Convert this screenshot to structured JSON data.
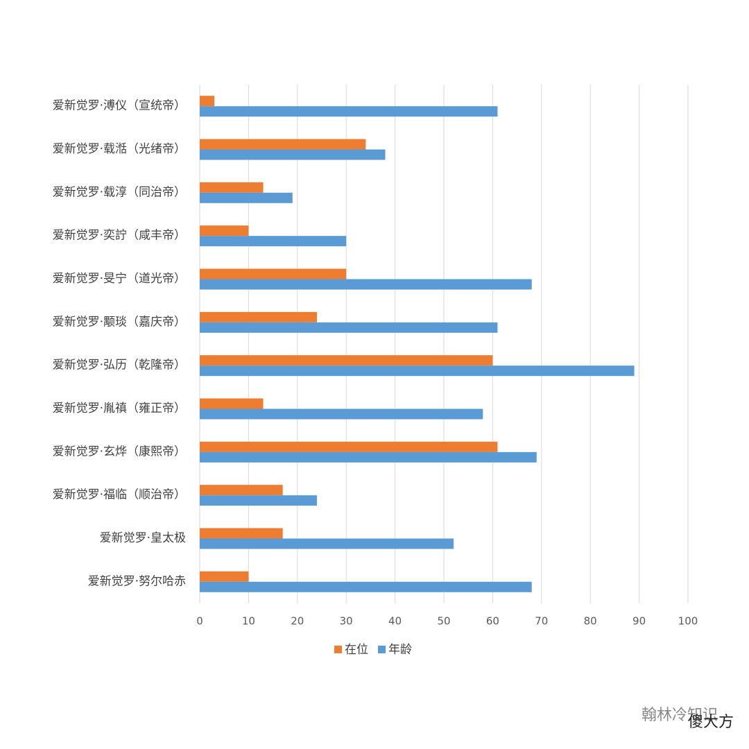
{
  "chart_data": {
    "type": "hbar",
    "categories": [
      "爱新觉罗·溥仪（宣统帝）",
      "爱新觉罗·载湉（光绪帝）",
      "爱新觉罗·载淳（同治帝）",
      "爱新觉罗·奕詝（咸丰帝）",
      "爱新觉罗·旻宁（道光帝）",
      "爱新觉罗·颙琰（嘉庆帝）",
      "爱新觉罗·弘历（乾隆帝）",
      "爱新觉罗·胤禛（雍正帝）",
      "爱新觉罗·玄烨（康熙帝）",
      "爱新觉罗·福临（顺治帝）",
      "爱新觉罗·皇太极",
      "爱新觉罗·努尔哈赤"
    ],
    "series": [
      {
        "name": "在位",
        "color": "#ed7d31",
        "values": [
          3,
          34,
          13,
          10,
          30,
          24,
          60,
          13,
          61,
          17,
          17,
          10
        ]
      },
      {
        "name": "年龄",
        "color": "#5b9bd5",
        "values": [
          61,
          38,
          19,
          30,
          68,
          61,
          89,
          58,
          69,
          24,
          52,
          68
        ]
      }
    ],
    "xlim": [
      0,
      100
    ],
    "xticks": [
      0,
      10,
      20,
      30,
      40,
      50,
      60,
      70,
      80,
      90,
      100
    ],
    "grid": true,
    "legend": "bottom"
  },
  "watermark": {
    "account": "翰林冷知识",
    "brand": "傻大方"
  }
}
